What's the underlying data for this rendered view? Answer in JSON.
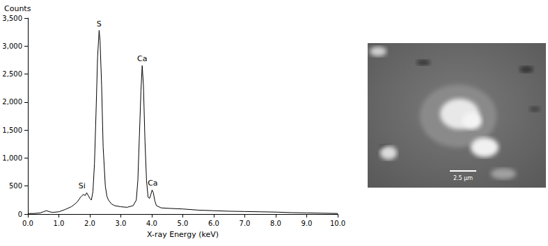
{
  "chart_data": {
    "type": "line",
    "color": "#000000",
    "grid": false,
    "x_label": "X-ray Energy (keV)",
    "y_label": "Counts",
    "x": [
      0.0,
      0.2,
      0.4,
      0.5,
      0.6,
      0.7,
      0.8,
      1.0,
      1.2,
      1.4,
      1.5,
      1.6,
      1.7,
      1.75,
      1.8,
      1.85,
      1.9,
      1.95,
      2.0,
      2.05,
      2.1,
      2.15,
      2.2,
      2.25,
      2.3,
      2.33,
      2.38,
      2.43,
      2.5,
      2.55,
      2.6,
      2.7,
      2.8,
      3.0,
      3.2,
      3.4,
      3.5,
      3.55,
      3.6,
      3.65,
      3.69,
      3.73,
      3.78,
      3.83,
      3.88,
      3.93,
      3.97,
      4.01,
      4.05,
      4.1,
      4.15,
      4.3,
      4.6,
      5.0,
      5.5,
      6.0,
      6.5,
      7.0,
      7.5,
      8.0,
      8.5,
      9.0,
      9.5,
      10.0
    ],
    "values": [
      10,
      10,
      20,
      40,
      60,
      40,
      30,
      40,
      80,
      130,
      170,
      220,
      300,
      330,
      350,
      330,
      380,
      330,
      280,
      250,
      400,
      900,
      1800,
      2800,
      3280,
      3100,
      2300,
      1200,
      500,
      320,
      250,
      180,
      150,
      130,
      120,
      150,
      250,
      600,
      1400,
      2200,
      2650,
      2300,
      1300,
      600,
      300,
      280,
      350,
      430,
      380,
      230,
      150,
      110,
      100,
      90,
      70,
      60,
      50,
      45,
      40,
      35,
      25,
      20,
      15,
      10
    ],
    "xlim": [
      0,
      10
    ],
    "xticks": [
      {
        "value": 0,
        "label": "0.0"
      },
      {
        "value": 1,
        "label": "1.0"
      },
      {
        "value": 2,
        "label": "2.0"
      },
      {
        "value": 3,
        "label": "3.0"
      },
      {
        "value": 4,
        "label": "4.0"
      },
      {
        "value": 5,
        "label": "5.0"
      },
      {
        "value": 6,
        "label": "6.0"
      },
      {
        "value": 7,
        "label": "7.0"
      },
      {
        "value": 8,
        "label": "8.0"
      },
      {
        "value": 9,
        "label": "9.0"
      },
      {
        "value": 10,
        "label": "10.0"
      }
    ],
    "ylim": [
      0,
      3500
    ],
    "yticks": [
      0,
      500,
      1000,
      1500,
      2000,
      2500,
      3000,
      3500
    ],
    "annotations": [
      {
        "text": "Si",
        "x": 1.75,
        "y": 380
      },
      {
        "text": "S",
        "x": 2.3,
        "y": 3280
      },
      {
        "text": "Ca",
        "x": 3.69,
        "y": 2650
      },
      {
        "text": "Ca",
        "x": 4.03,
        "y": 430
      }
    ]
  },
  "micrograph": {
    "scale_bar_label": "2.5 µm"
  }
}
